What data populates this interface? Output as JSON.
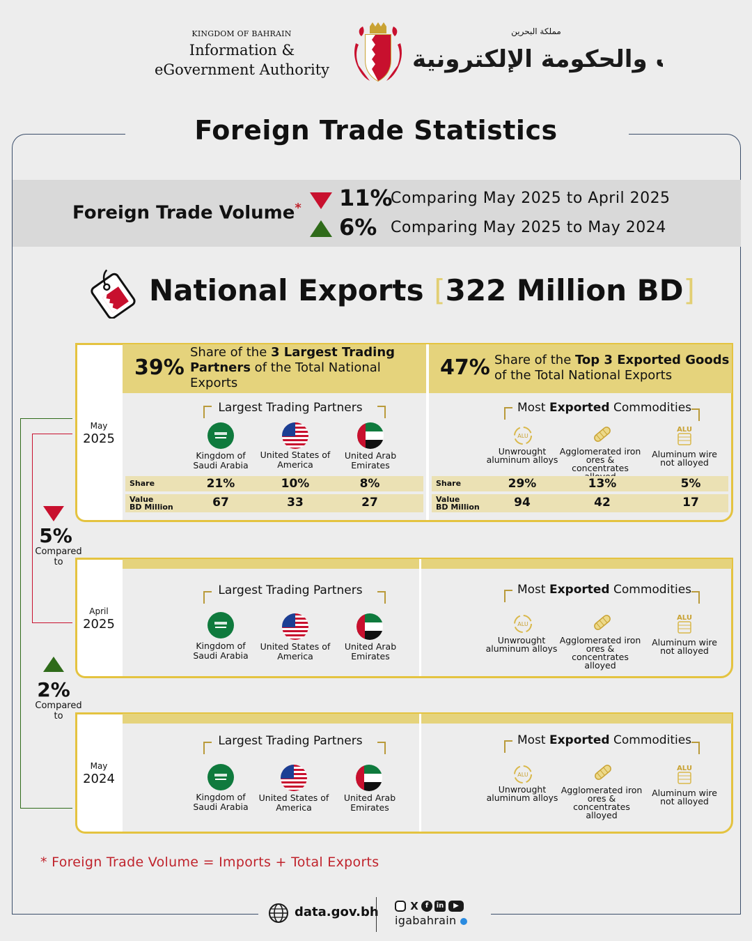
{
  "header": {
    "kingdom": "KINGDOM OF BAHRAIN",
    "authority": "Information & eGovernment Authority",
    "arabic_small": "مملكة البحرين",
    "arabic_big": "هيئة المعلومات والحكومة الإلكترونية"
  },
  "title": "Foreign Trade Statistics",
  "volume": {
    "label": "Foreign Trade Volume",
    "asterisk": "*",
    "items": [
      {
        "pct": "11%",
        "direction": "down",
        "text": "Comparing May 2025 to April 2025"
      },
      {
        "pct": "6%",
        "direction": "up",
        "text": "Comparing May 2025 to May 2024"
      }
    ]
  },
  "exports": {
    "label": "National Exports",
    "bracket_open": "[",
    "bracket_close": "]",
    "amount": "322 Million BD"
  },
  "shares": {
    "partners_pct": "39%",
    "partners_text_1": "Share of the ",
    "partners_text_bold": "3 Largest Trading Partners",
    "partners_text_2": " of the Total National Exports",
    "goods_pct": "47%",
    "goods_text_1": "Share of the ",
    "goods_text_bold": "Top 3 Exported Goods",
    "goods_text_2": " of the Total National Exports"
  },
  "sections": {
    "partners_title": "Largest Trading Partners",
    "commodities_title_1": "Most ",
    "commodities_title_bold": "Exported",
    "commodities_title_2": " Commodities"
  },
  "partners": [
    "Kingdom of Saudi Arabia",
    "United States of America",
    "United Arab Emirates"
  ],
  "commodities": [
    "Unwrought aluminum alloys",
    "Agglomerated iron ores & concentrates alloyed",
    "Aluminum wire not alloyed"
  ],
  "periods": [
    {
      "month": "May",
      "year": "2025"
    },
    {
      "month": "April",
      "year": "2025"
    },
    {
      "month": "May",
      "year": "2024"
    }
  ],
  "table": {
    "share_label": "Share",
    "value_label_1": "Value",
    "value_label_2": "BD Million",
    "partners_share": [
      "21%",
      "10%",
      "8%"
    ],
    "partners_value": [
      "67",
      "33",
      "27"
    ],
    "commodities_share": [
      "29%",
      "13%",
      "5%"
    ],
    "commodities_value": [
      "94",
      "42",
      "17"
    ]
  },
  "comparisons": [
    {
      "pct": "5%",
      "direction": "down",
      "label": "Compared to"
    },
    {
      "pct": "2%",
      "direction": "up",
      "label": "Compared to"
    }
  ],
  "icons": {
    "alu_text": "ALU"
  },
  "footnote": "*  Foreign Trade Volume = Imports + Total Exports",
  "footer": {
    "website": "data.gov.bh",
    "handle": "igabahrain"
  },
  "colors": {
    "gold": "#e4c340",
    "gold_light": "#e5d37c",
    "red": "#c8102e",
    "green": "#2f6b1a",
    "navy": "#3a4d6a"
  }
}
